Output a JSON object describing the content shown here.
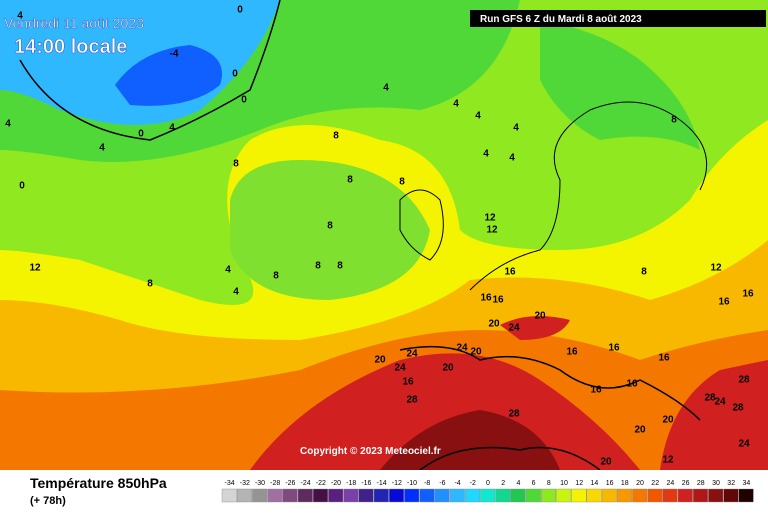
{
  "map": {
    "valid_time": "Vendredi 11 août 2023",
    "local_time": "14:00 locale",
    "run": "Run GFS 6 Z du Mardi 8 août 2023",
    "copyright": "Copyright © 2023 Meteociel.fr",
    "title": "Température 850hPa",
    "lead": "(+ 78h)",
    "contour_labels": [
      0,
      -4,
      0,
      0,
      4,
      0,
      4,
      4,
      4,
      0,
      4,
      8,
      8,
      8,
      8,
      4,
      4,
      4,
      4,
      4,
      8,
      12,
      12,
      8,
      8,
      8,
      8,
      8,
      4,
      4,
      8,
      12,
      16,
      16,
      16,
      20,
      24,
      20,
      20,
      24,
      24,
      20,
      16,
      20,
      24,
      28,
      28,
      28,
      16,
      16,
      16,
      20,
      20,
      24,
      28,
      24,
      28,
      16,
      16,
      20,
      12,
      12,
      16,
      16
    ],
    "scale": [
      {
        "value": -34,
        "color": "#d4d4d4"
      },
      {
        "value": -32,
        "color": "#b4b4b4"
      },
      {
        "value": -30,
        "color": "#949494"
      },
      {
        "value": -28,
        "color": "#a070a0"
      },
      {
        "value": -26,
        "color": "#804a80"
      },
      {
        "value": -24,
        "color": "#602a60"
      },
      {
        "value": -22,
        "color": "#451045"
      },
      {
        "value": -20,
        "color": "#5a2080"
      },
      {
        "value": -18,
        "color": "#7a40a8"
      },
      {
        "value": -16,
        "color": "#40208c"
      },
      {
        "value": -14,
        "color": "#2424b4"
      },
      {
        "value": -12,
        "color": "#0808d8"
      },
      {
        "value": -10,
        "color": "#0030ff"
      },
      {
        "value": -8,
        "color": "#1060ff"
      },
      {
        "value": -6,
        "color": "#2090ff"
      },
      {
        "value": -4,
        "color": "#30b8ff"
      },
      {
        "value": -2,
        "color": "#20d8ff"
      },
      {
        "value": 0,
        "color": "#10e8d0"
      },
      {
        "value": 2,
        "color": "#10d890"
      },
      {
        "value": 4,
        "color": "#20c850"
      },
      {
        "value": 6,
        "color": "#50d838"
      },
      {
        "value": 8,
        "color": "#90e820"
      },
      {
        "value": 10,
        "color": "#c8f410"
      },
      {
        "value": 12,
        "color": "#f4f400"
      },
      {
        "value": 14,
        "color": "#f8d800"
      },
      {
        "value": 16,
        "color": "#f8b800"
      },
      {
        "value": 18,
        "color": "#f89800"
      },
      {
        "value": 20,
        "color": "#f47800"
      },
      {
        "value": 22,
        "color": "#f05800"
      },
      {
        "value": 24,
        "color": "#e43810"
      },
      {
        "value": 26,
        "color": "#d02020"
      },
      {
        "value": 28,
        "color": "#b01818"
      },
      {
        "value": 30,
        "color": "#881010"
      },
      {
        "value": 32,
        "color": "#600808"
      },
      {
        "value": 34,
        "color": "#200000"
      }
    ]
  }
}
